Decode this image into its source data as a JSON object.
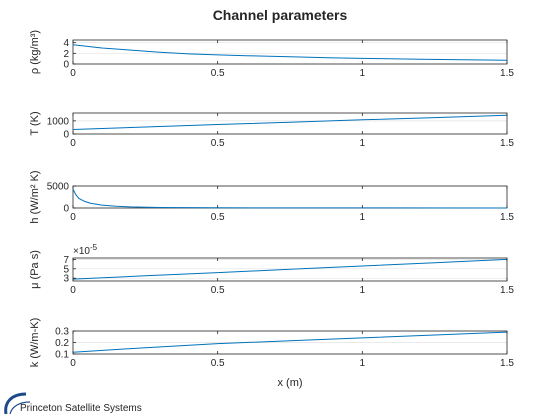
{
  "brand": {
    "name": "Princeton Satellite Systems",
    "logo_color": "#1f4a8a"
  },
  "chart_data": {
    "type": "line",
    "title": "Channel parameters",
    "xlabel": "x (m)",
    "line_color": "#0072BD",
    "grid": true,
    "subplots": [
      {
        "ylabel": "ρ (kg/m³)",
        "xlim": [
          0,
          1.5
        ],
        "ylim": [
          0,
          4.5
        ],
        "xticks": [
          "0",
          "0.5",
          "1",
          "1.5"
        ],
        "yticks": [
          "0",
          "2",
          "4"
        ],
        "ytick_values": [
          0,
          2,
          4
        ],
        "exponent_label": "",
        "x": [
          0,
          0.05,
          0.1,
          0.2,
          0.3,
          0.4,
          0.5,
          0.6,
          0.75,
          0.9,
          1.0,
          1.2,
          1.35,
          1.5
        ],
        "y": [
          3.6,
          3.3,
          3.0,
          2.6,
          2.2,
          1.9,
          1.7,
          1.55,
          1.35,
          1.15,
          1.05,
          0.9,
          0.8,
          0.7
        ]
      },
      {
        "ylabel": "T (K)",
        "xlim": [
          0,
          1.5
        ],
        "ylim": [
          0,
          1600
        ],
        "xticks": [
          "0",
          "0.5",
          "1",
          "1.5"
        ],
        "yticks": [
          "0",
          "1000"
        ],
        "ytick_values": [
          0,
          1000
        ],
        "exponent_label": "",
        "x": [
          0,
          0.25,
          0.5,
          0.75,
          1.0,
          1.25,
          1.5
        ],
        "y": [
          340,
          530,
          720,
          900,
          1080,
          1250,
          1430
        ]
      },
      {
        "ylabel": "h (W/m² K)",
        "xlim": [
          0,
          1.5
        ],
        "ylim": [
          0,
          5000
        ],
        "xticks": [
          "0",
          "0.5",
          "1",
          "1.5"
        ],
        "yticks": [
          "0",
          "5000"
        ],
        "ytick_values": [
          0,
          5000
        ],
        "exponent_label": "",
        "x": [
          0,
          0.01,
          0.02,
          0.04,
          0.06,
          0.1,
          0.15,
          0.2,
          0.3,
          0.5,
          0.8,
          1.0,
          1.5
        ],
        "y": [
          4300,
          3000,
          2200,
          1500,
          1100,
          650,
          400,
          250,
          110,
          40,
          20,
          15,
          10
        ]
      },
      {
        "ylabel": "μ (Pa s)",
        "xlim": [
          0,
          1.5
        ],
        "ylim": [
          2.4e-05,
          7.3e-05
        ],
        "xticks": [
          "0",
          "0.5",
          "1",
          "1.5"
        ],
        "yticks": [
          "3",
          "5",
          "7"
        ],
        "ytick_values": [
          3e-05,
          5e-05,
          7e-05
        ],
        "exponent_label": "×10",
        "exponent_power": "-5",
        "x": [
          0,
          0.25,
          0.5,
          0.75,
          1.0,
          1.25,
          1.5
        ],
        "y": [
          2.8e-05,
          3.5e-05,
          4.2e-05,
          4.9e-05,
          5.6e-05,
          6.3e-05,
          7e-05
        ]
      },
      {
        "ylabel": "k (W/m-K)",
        "xlim": [
          0,
          1.5
        ],
        "ylim": [
          0.1,
          0.3
        ],
        "xticks": [
          "0",
          "0.5",
          "1",
          "1.5"
        ],
        "yticks": [
          "0.1",
          "0.2",
          "0.3"
        ],
        "ytick_values": [
          0.1,
          0.2,
          0.3
        ],
        "exponent_label": "",
        "x": [
          0,
          0.25,
          0.5,
          0.75,
          1.0,
          1.25,
          1.5
        ],
        "y": [
          0.115,
          0.155,
          0.19,
          0.215,
          0.24,
          0.265,
          0.29
        ]
      }
    ]
  }
}
